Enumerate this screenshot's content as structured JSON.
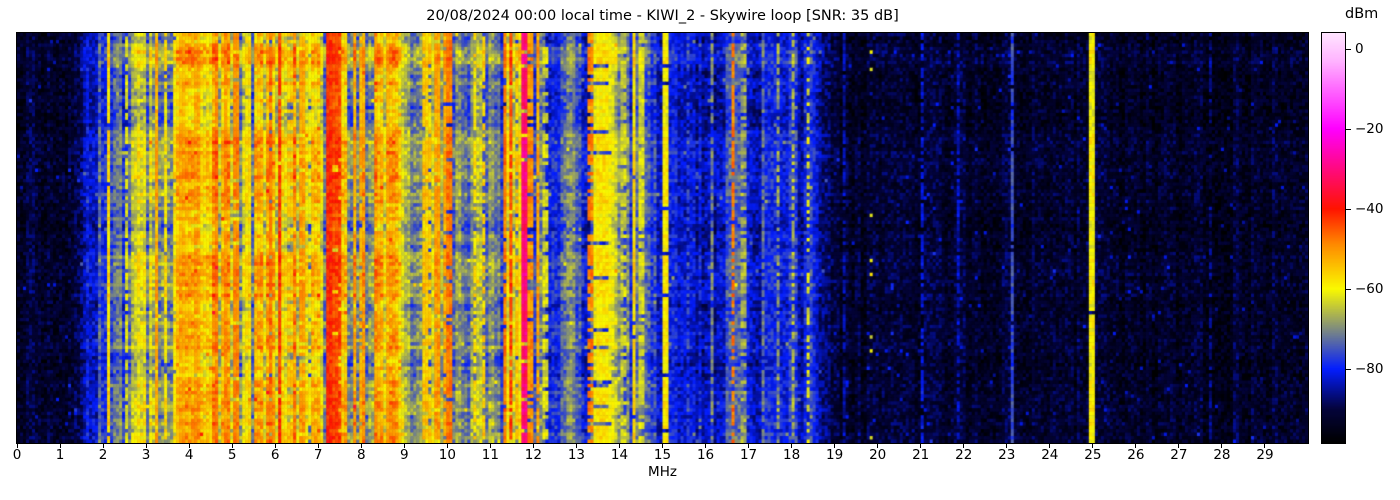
{
  "chart_data": {
    "type": "heatmap",
    "title": "20/08/2024 00:00 local time - KIWI_2 - Skywire loop [SNR: 35 dB]",
    "xlabel": "MHz",
    "x_range_mhz": [
      0,
      30
    ],
    "x_ticks": [
      {
        "value": 0,
        "label": "0"
      },
      {
        "value": 1,
        "label": "1"
      },
      {
        "value": 2,
        "label": "2"
      },
      {
        "value": 3,
        "label": "3"
      },
      {
        "value": 4,
        "label": "4"
      },
      {
        "value": 5,
        "label": "5"
      },
      {
        "value": 6,
        "label": "6"
      },
      {
        "value": 7,
        "label": "7"
      },
      {
        "value": 8,
        "label": "8"
      },
      {
        "value": 9,
        "label": "9"
      },
      {
        "value": 10,
        "label": "10"
      },
      {
        "value": 11,
        "label": "11"
      },
      {
        "value": 12,
        "label": "12"
      },
      {
        "value": 13,
        "label": "13"
      },
      {
        "value": 14,
        "label": "14"
      },
      {
        "value": 15,
        "label": "15"
      },
      {
        "value": 16,
        "label": "16"
      },
      {
        "value": 17,
        "label": "17"
      },
      {
        "value": 18,
        "label": "18"
      },
      {
        "value": 19,
        "label": "19"
      },
      {
        "value": 20,
        "label": "20"
      },
      {
        "value": 21,
        "label": "21"
      },
      {
        "value": 22,
        "label": "22"
      },
      {
        "value": 23,
        "label": "23"
      },
      {
        "value": 24,
        "label": "24"
      },
      {
        "value": 25,
        "label": "25"
      },
      {
        "value": 26,
        "label": "26"
      },
      {
        "value": 27,
        "label": "27"
      },
      {
        "value": 28,
        "label": "28"
      },
      {
        "value": 29,
        "label": "29"
      }
    ],
    "colorbar": {
      "label": "dBm",
      "vmin": -98.5,
      "vmax": 4,
      "ticks": [
        {
          "value": 0,
          "label": "0"
        },
        {
          "value": -20,
          "label": "−20"
        },
        {
          "value": -40,
          "label": "−40"
        },
        {
          "value": -60,
          "label": "−60"
        },
        {
          "value": -80,
          "label": "−80"
        }
      ]
    },
    "colormap_stops": [
      [
        -98.5,
        "#000000"
      ],
      [
        -90.0,
        "#04043c"
      ],
      [
        -80.0,
        "#041eff"
      ],
      [
        -60.0,
        "#fafa00"
      ],
      [
        -49.0,
        "#ff8c00"
      ],
      [
        -40.0,
        "#ff1400"
      ],
      [
        -20.0,
        "#ff00ff"
      ],
      [
        -3.0,
        "#ffb4ff"
      ],
      [
        4.0,
        "#ffe6ff"
      ]
    ],
    "waterfall": {
      "rows": 118,
      "cols": 430,
      "seed": 20240820,
      "noise_db": 4.5,
      "sparkle_prob": 0.015,
      "sparkle_db": 8,
      "band_profile": [
        [
          0.0,
          -92.5,
          2.5
        ],
        [
          1.45,
          -92.5,
          2.5
        ],
        [
          1.75,
          -81,
          5
        ],
        [
          2.5,
          -76,
          9
        ],
        [
          3.0,
          -70,
          12
        ],
        [
          3.4,
          -66,
          13
        ],
        [
          8.8,
          -66,
          13
        ],
        [
          9.05,
          -76,
          7
        ],
        [
          9.35,
          -73,
          10
        ],
        [
          9.9,
          -72,
          11
        ],
        [
          10.15,
          -75,
          8
        ],
        [
          11.15,
          -74,
          9
        ],
        [
          11.35,
          -71,
          12
        ],
        [
          12.0,
          -73,
          10
        ],
        [
          12.25,
          -77,
          8
        ],
        [
          12.6,
          -80,
          6
        ],
        [
          13.2,
          -77,
          9
        ],
        [
          13.45,
          -72,
          12
        ],
        [
          13.85,
          -75,
          10
        ],
        [
          14.4,
          -79,
          7
        ],
        [
          14.9,
          -81,
          5
        ],
        [
          15.5,
          -84,
          4
        ],
        [
          16.35,
          -82,
          6
        ],
        [
          16.7,
          -80,
          7
        ],
        [
          17.2,
          -82,
          5
        ],
        [
          18.45,
          -83,
          5
        ],
        [
          18.7,
          -91,
          3
        ],
        [
          19.4,
          -93,
          2.5
        ],
        [
          30.0,
          -93.5,
          2.5
        ]
      ],
      "carriers": [
        [
          2.08,
          -57,
          0.03,
          0.02
        ],
        [
          2.35,
          -68,
          0.03,
          0.3
        ],
        [
          2.5,
          -63,
          0.03,
          0.2
        ],
        [
          3.2,
          -52,
          0.04,
          0.1
        ],
        [
          3.4,
          -58,
          0.03,
          0.2
        ],
        [
          3.65,
          -55,
          0.04,
          0.15
        ],
        [
          3.8,
          -50,
          0.05,
          0.1
        ],
        [
          3.95,
          -57,
          0.03,
          0.2
        ],
        [
          4.15,
          -48,
          0.03,
          0.15
        ],
        [
          4.6,
          -49,
          0.03,
          0.15
        ],
        [
          4.8,
          -50,
          0.04,
          0.1
        ],
        [
          5.05,
          -46,
          0.05,
          0.08
        ],
        [
          5.35,
          -55,
          0.03,
          0.25
        ],
        [
          5.6,
          -58,
          0.03,
          0.3
        ],
        [
          5.85,
          -47,
          0.04,
          0.1
        ],
        [
          6.07,
          -43,
          0.05,
          0.05
        ],
        [
          6.3,
          -52,
          0.03,
          0.3
        ],
        [
          6.6,
          -48,
          0.03,
          0.2
        ],
        [
          6.8,
          -57,
          0.03,
          0.3
        ],
        [
          7.2,
          -39,
          0.06,
          0.02
        ],
        [
          7.35,
          -41,
          0.05,
          0.05
        ],
        [
          7.45,
          -44,
          0.03,
          0.1
        ],
        [
          7.8,
          -54,
          0.03,
          0.3
        ],
        [
          8.0,
          -50,
          0.03,
          0.2
        ],
        [
          8.35,
          -56,
          0.03,
          0.3
        ],
        [
          8.6,
          -52,
          0.03,
          0.2
        ],
        [
          9.45,
          -52,
          0.04,
          0.15
        ],
        [
          9.55,
          -56,
          0.03,
          0.2
        ],
        [
          9.75,
          -48,
          0.04,
          0.1
        ],
        [
          9.9,
          -52,
          0.03,
          0.2
        ],
        [
          10.0,
          -45,
          0.04,
          0.1
        ],
        [
          10.6,
          -58,
          0.03,
          0.35
        ],
        [
          10.8,
          -56,
          0.03,
          0.3
        ],
        [
          11.3,
          -48,
          0.04,
          0.15
        ],
        [
          11.45,
          -44,
          0.04,
          0.1
        ],
        [
          11.6,
          -55,
          0.03,
          0.2
        ],
        [
          11.75,
          -28,
          0.04,
          0.1
        ],
        [
          11.9,
          -47,
          0.04,
          0.15
        ],
        [
          12.05,
          -52,
          0.03,
          0.2
        ],
        [
          12.25,
          -60,
          0.03,
          0.4
        ],
        [
          12.8,
          -65,
          0.03,
          0.4
        ],
        [
          13.3,
          -46,
          0.04,
          0.3
        ],
        [
          13.57,
          -58,
          0.28,
          0.15
        ],
        [
          13.78,
          -59,
          0.05,
          0.25
        ],
        [
          14.05,
          -61,
          0.03,
          0.35
        ],
        [
          14.29,
          -57,
          0.03,
          0.05
        ],
        [
          14.47,
          -60,
          0.03,
          0.2
        ],
        [
          15.02,
          -56,
          0.05,
          0.06
        ],
        [
          15.55,
          -76,
          0.03,
          0.4
        ],
        [
          16.1,
          -70,
          0.03,
          0.4
        ],
        [
          16.6,
          -48,
          0.035,
          0.35
        ],
        [
          16.85,
          -64,
          0.03,
          0.4
        ],
        [
          17.3,
          -72,
          0.03,
          0.3
        ],
        [
          17.65,
          -68,
          0.03,
          0.4
        ],
        [
          18.0,
          -66,
          0.03,
          0.4
        ],
        [
          18.35,
          -62,
          0.03,
          0.5
        ],
        [
          19.2,
          -85,
          0.03,
          0.2
        ],
        [
          19.8,
          -62,
          0.025,
          0.94
        ],
        [
          21.0,
          -82,
          0.03,
          0.3
        ],
        [
          21.85,
          -84,
          0.03,
          0.3
        ],
        [
          23.1,
          -76,
          0.025,
          0.05
        ],
        [
          24.95,
          -57,
          0.03,
          0.04
        ],
        [
          27.7,
          -87,
          0.03,
          0.4
        ]
      ]
    }
  }
}
